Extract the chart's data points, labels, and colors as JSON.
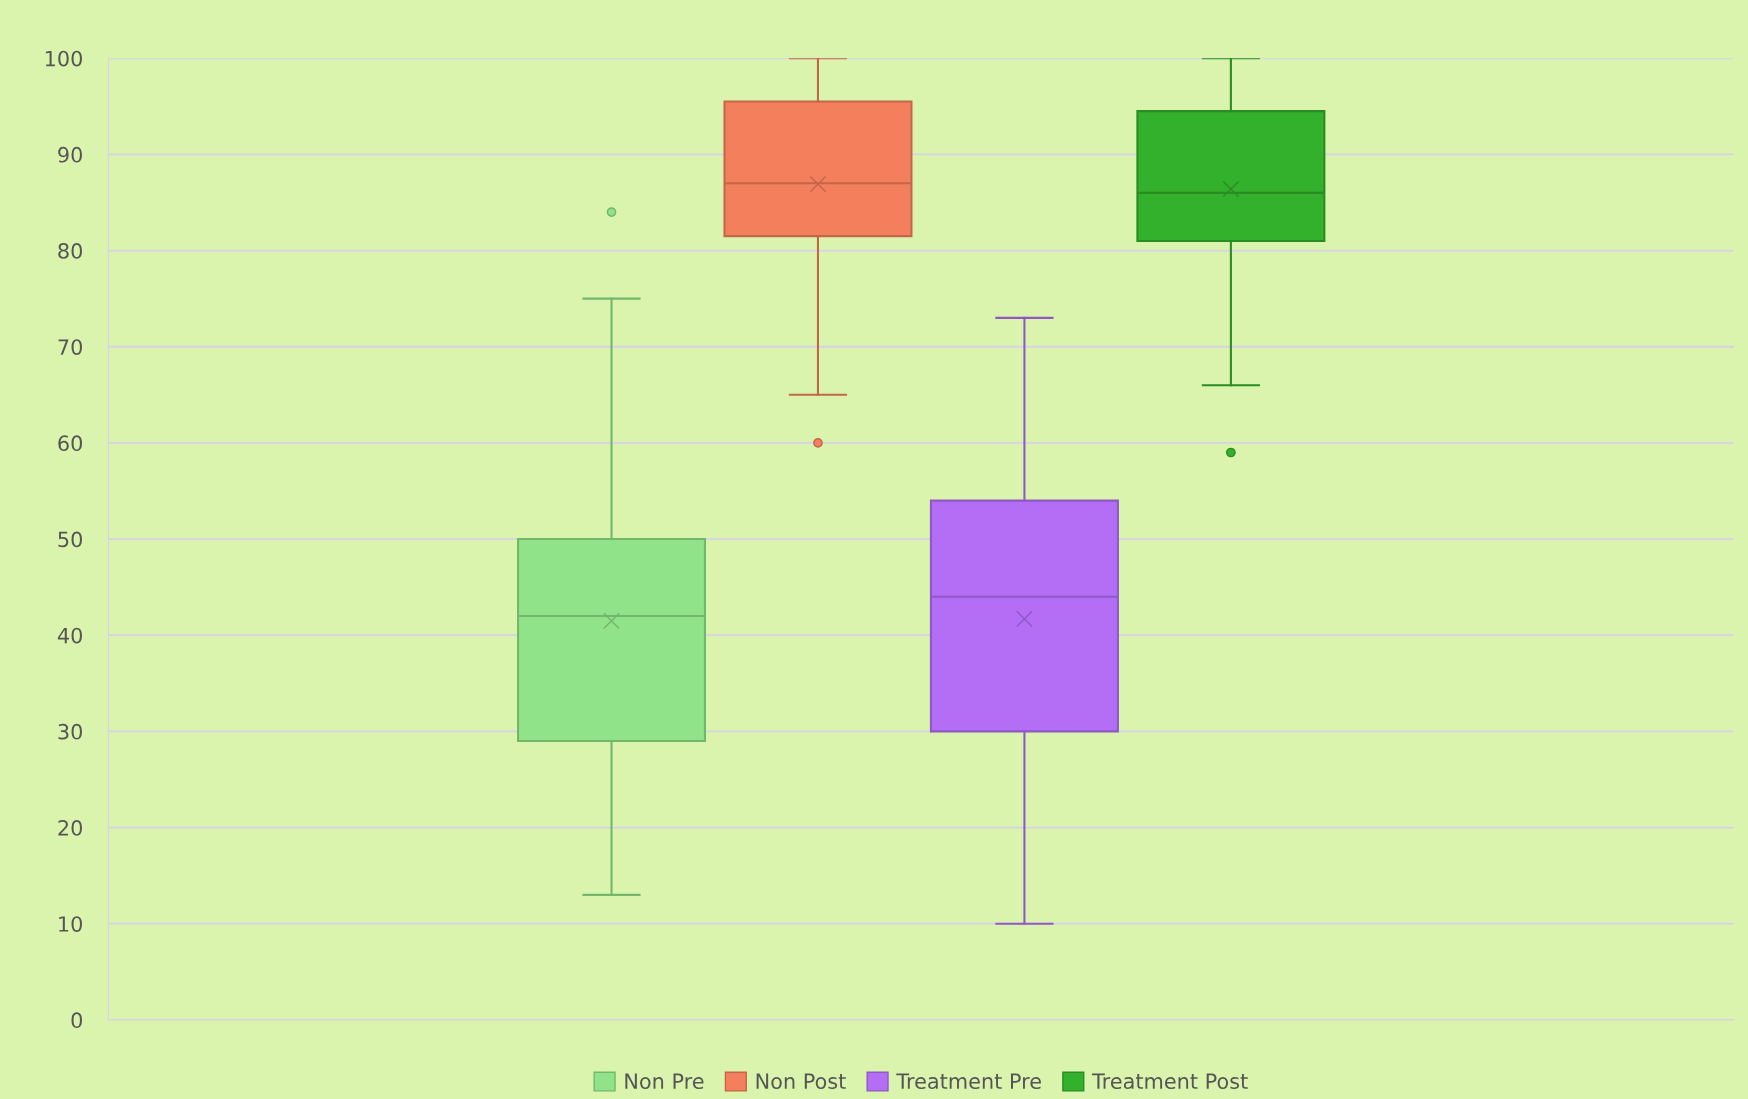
{
  "chart_data": {
    "type": "box",
    "categories": [
      null
    ],
    "series": [
      {
        "name": "Non Pre",
        "color": "#90e388",
        "boxes": [
          {
            "low": 13,
            "q1": 29,
            "median": 42,
            "q3": 50,
            "high": 75,
            "mean": 41.5,
            "outliers": [
              84
            ]
          }
        ]
      },
      {
        "name": "Non Post",
        "color": "#f47f5c",
        "boxes": [
          {
            "low": 65,
            "q1": 81.5,
            "median": 87,
            "q3": 95.5,
            "high": 100,
            "mean": 86.9,
            "outliers": [
              60
            ]
          }
        ]
      },
      {
        "name": "Treatment Pre",
        "color": "#b36ef5",
        "boxes": [
          {
            "low": 10,
            "q1": 30,
            "median": 44,
            "q3": 54,
            "high": 73,
            "mean": 41.7
          }
        ]
      },
      {
        "name": "Treatment Post",
        "color": "#33b02c",
        "boxes": [
          {
            "low": 66,
            "q1": 81,
            "median": 86,
            "q3": 94.5,
            "high": 100,
            "mean": 86.4,
            "outliers": [
              59
            ]
          }
        ]
      }
    ],
    "ylim": [
      0,
      100
    ],
    "yticks": [
      0,
      10,
      20,
      30,
      40,
      50,
      60,
      70,
      80,
      90,
      100
    ],
    "grid": "y",
    "legend": "bottom",
    "marker": "cross"
  }
}
